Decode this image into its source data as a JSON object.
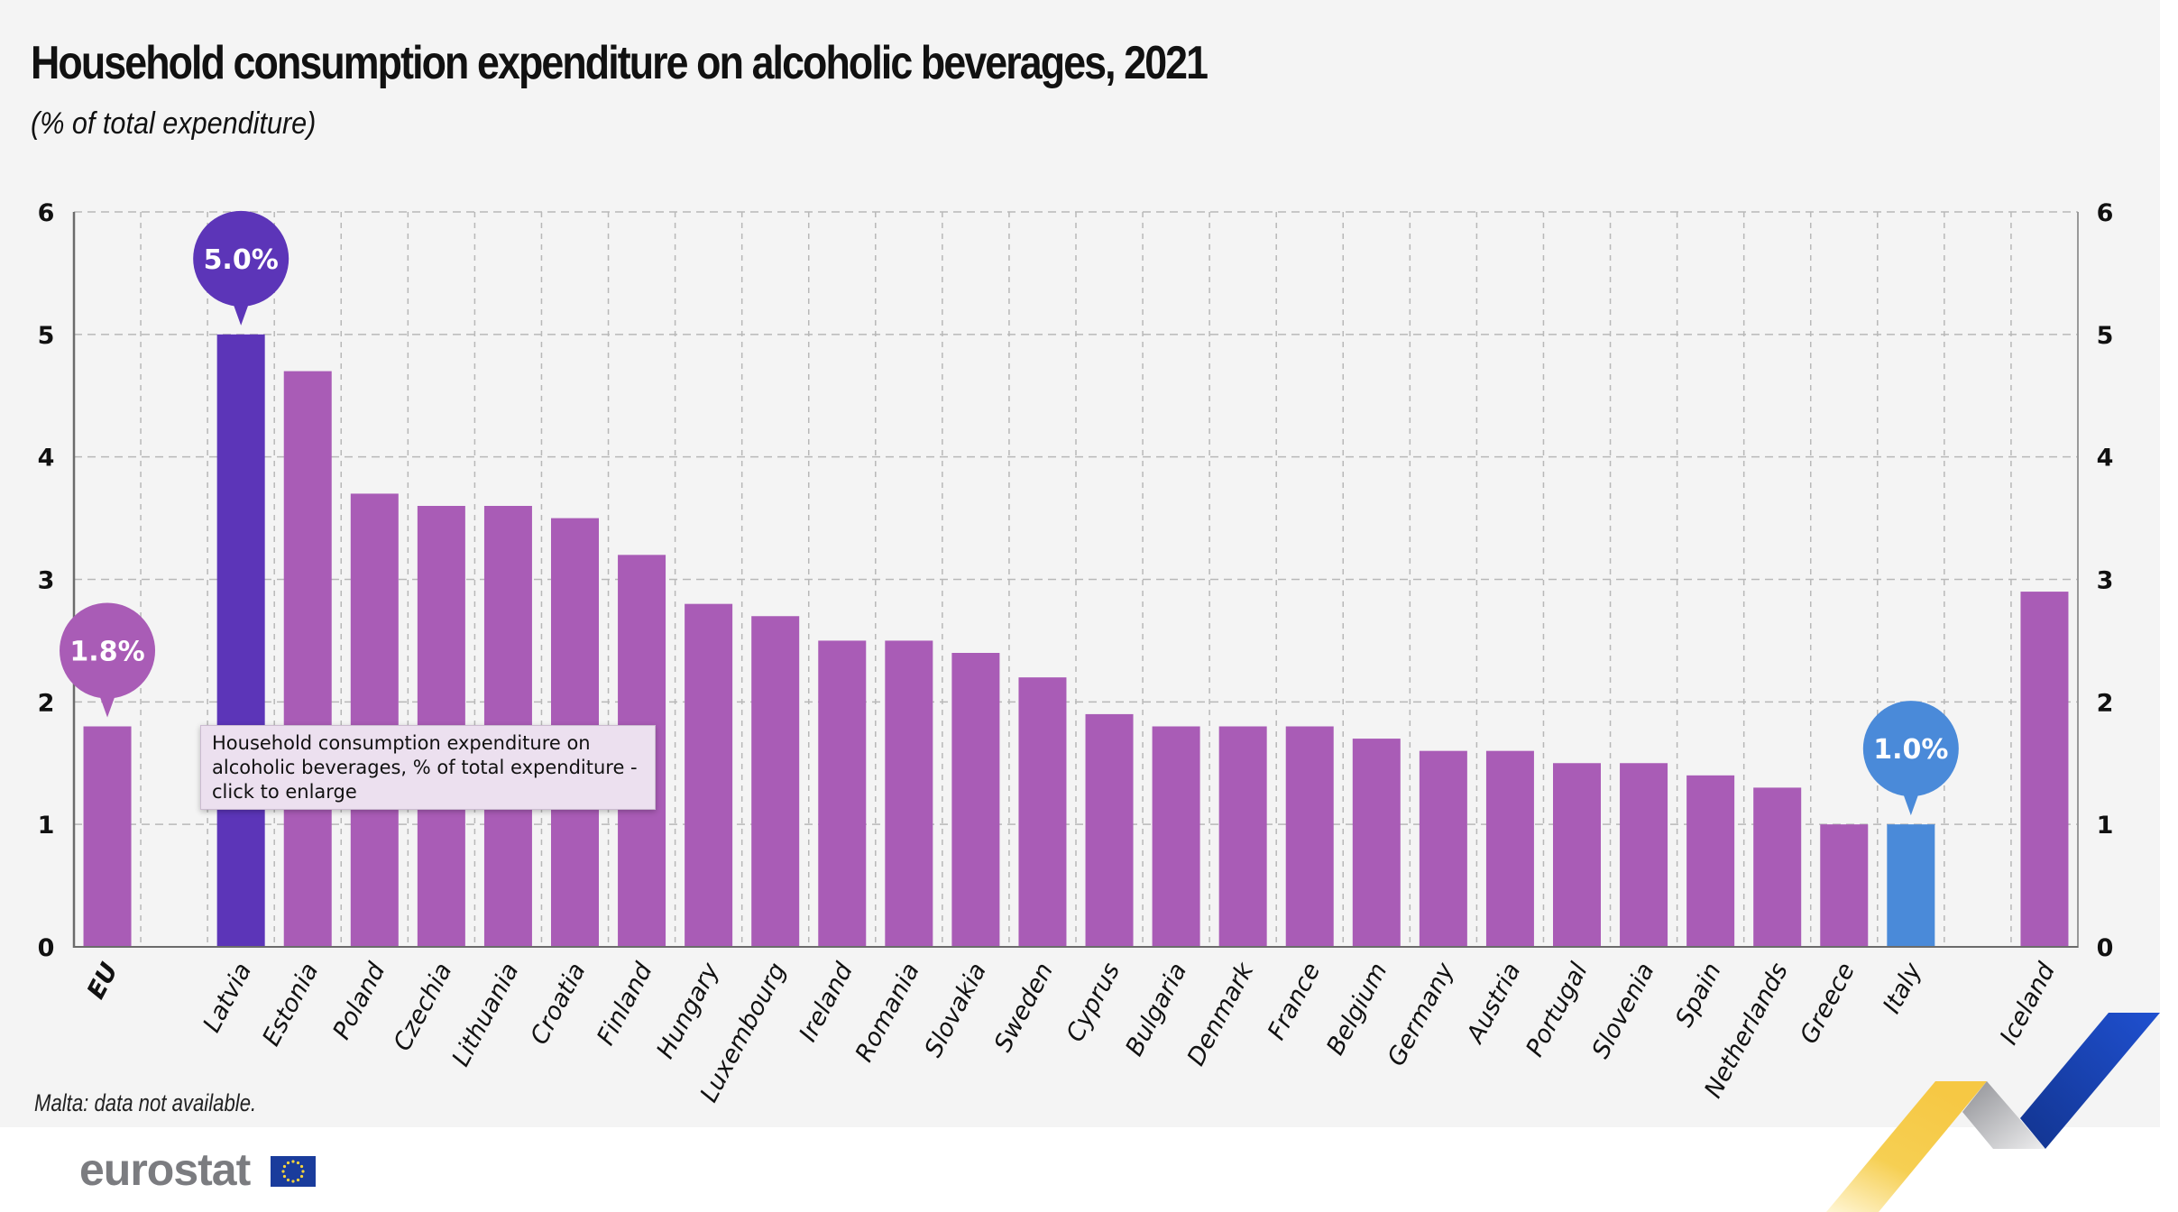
{
  "header": {
    "title": "Household consumption expenditure on alcoholic beverages, 2021",
    "subtitle": "(% of total expenditure)"
  },
  "tooltip": {
    "text": "Household consumption expenditure on alcoholic beverages, % of total expenditure - click to enlarge"
  },
  "footnote": "Malta: data not available.",
  "logo": {
    "text": "eurostat",
    "flag_icon": "eu-flag-icon"
  },
  "colors": {
    "bar_default": "#a95cb6",
    "bar_highlight_max": "#5c35b8",
    "bar_highlight_italy": "#4a8ad9",
    "grid": "#b8b8b8",
    "axis": "#6b6b6b",
    "background": "#f4f4f4",
    "deco_blue": "#1b49c4",
    "deco_yellow": "#f6c844",
    "deco_grey": "#a6a7ab"
  },
  "chart_data": {
    "type": "bar",
    "title": "Household consumption expenditure on alcoholic beverages, 2021",
    "subtitle": "(% of total expenditure)",
    "xlabel": "",
    "ylabel": "",
    "ylim": [
      0,
      6
    ],
    "yticks": [
      0,
      1,
      2,
      3,
      4,
      5,
      6
    ],
    "grid": true,
    "dual_y_axis": true,
    "categories": [
      "EU",
      "",
      "Latvia",
      "Estonia",
      "Poland",
      "Czechia",
      "Lithuania",
      "Croatia",
      "Finland",
      "Hungary",
      "Luxembourg",
      "Ireland",
      "Romania",
      "Slovakia",
      "Sweden",
      "Cyprus",
      "Bulgaria",
      "Denmark",
      "France",
      "Belgium",
      "Germany",
      "Austria",
      "Portugal",
      "Slovenia",
      "Spain",
      "Netherlands",
      "Greece",
      "Italy",
      "",
      "Iceland"
    ],
    "values": [
      1.8,
      null,
      5.0,
      4.7,
      3.7,
      3.6,
      3.6,
      3.5,
      3.2,
      2.8,
      2.7,
      2.5,
      2.5,
      2.4,
      2.2,
      1.9,
      1.8,
      1.8,
      1.8,
      1.7,
      1.6,
      1.6,
      1.5,
      1.5,
      1.4,
      1.3,
      1.0,
      1.0,
      null,
      2.9
    ],
    "bold_categories": [
      "EU"
    ],
    "highlights": [
      {
        "category": "Latvia",
        "color_key": "bar_highlight_max",
        "label": "5.0%"
      },
      {
        "category": "Italy",
        "color_key": "bar_highlight_italy",
        "label": "1.0%"
      },
      {
        "category": "EU",
        "color_key": "bar_default",
        "label": "1.8%"
      }
    ],
    "legend": "none"
  }
}
